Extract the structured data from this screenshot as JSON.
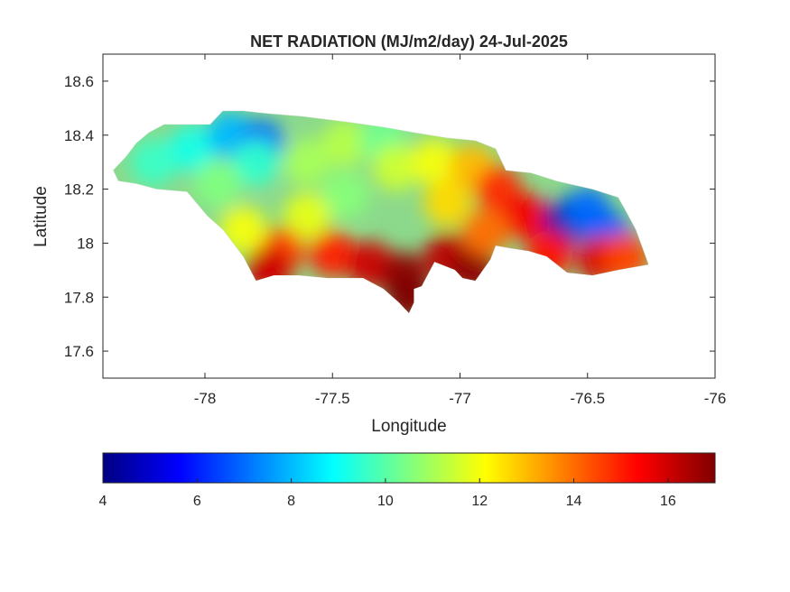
{
  "title": "NET RADIATION (MJ/m2/day) 24-Jul-2025",
  "x_axis": {
    "label": "Longitude",
    "range": [
      -78.4,
      -76
    ],
    "ticks": [
      "-78",
      "-77.5",
      "-77",
      "-76.5",
      "-76"
    ]
  },
  "y_axis": {
    "label": "Latitude",
    "range": [
      17.5,
      18.7
    ],
    "ticks": [
      "17.6",
      "17.8",
      "18",
      "18.2",
      "18.4",
      "18.6"
    ]
  },
  "colorbar": {
    "range": [
      4,
      17
    ],
    "ticks": [
      "4",
      "6",
      "8",
      "10",
      "12",
      "14",
      "16"
    ],
    "colormap": "jet",
    "stops": [
      "#00008f",
      "#0000ff",
      "#00ffff",
      "#ffff00",
      "#ff0000",
      "#800000"
    ],
    "placement": "bottom"
  },
  "map": {
    "region": "Jamaica",
    "outline": [
      [
        -78.36,
        18.27
      ],
      [
        -78.31,
        18.32
      ],
      [
        -78.27,
        18.37
      ],
      [
        -78.22,
        18.41
      ],
      [
        -78.16,
        18.44
      ],
      [
        -78.06,
        18.44
      ],
      [
        -77.98,
        18.44
      ],
      [
        -77.93,
        18.49
      ],
      [
        -77.85,
        18.49
      ],
      [
        -77.75,
        18.48
      ],
      [
        -77.62,
        18.47
      ],
      [
        -77.45,
        18.45
      ],
      [
        -77.3,
        18.43
      ],
      [
        -77.18,
        18.41
      ],
      [
        -77.05,
        18.39
      ],
      [
        -76.94,
        18.38
      ],
      [
        -76.86,
        18.35
      ],
      [
        -76.82,
        18.27
      ],
      [
        -76.72,
        18.26
      ],
      [
        -76.62,
        18.23
      ],
      [
        -76.48,
        18.2
      ],
      [
        -76.38,
        18.17
      ],
      [
        -76.35,
        18.12
      ],
      [
        -76.31,
        18.05
      ],
      [
        -76.26,
        17.92
      ],
      [
        -76.38,
        17.9
      ],
      [
        -76.48,
        17.88
      ],
      [
        -76.58,
        17.89
      ],
      [
        -76.66,
        17.95
      ],
      [
        -76.73,
        17.97
      ],
      [
        -76.8,
        17.98
      ],
      [
        -76.86,
        17.99
      ],
      [
        -76.88,
        17.94
      ],
      [
        -76.94,
        17.86
      ],
      [
        -76.99,
        17.87
      ],
      [
        -77.02,
        17.9
      ],
      [
        -77.1,
        17.93
      ],
      [
        -77.15,
        17.84
      ],
      [
        -77.18,
        17.83
      ],
      [
        -77.18,
        17.78
      ],
      [
        -77.2,
        17.74
      ],
      [
        -77.24,
        17.78
      ],
      [
        -77.3,
        17.83
      ],
      [
        -77.38,
        17.87
      ],
      [
        -77.45,
        17.87
      ],
      [
        -77.52,
        17.87
      ],
      [
        -77.63,
        17.88
      ],
      [
        -77.73,
        17.88
      ],
      [
        -77.8,
        17.86
      ],
      [
        -77.85,
        17.95
      ],
      [
        -77.93,
        18.05
      ],
      [
        -77.99,
        18.1
      ],
      [
        -78.07,
        18.19
      ],
      [
        -78.19,
        18.2
      ],
      [
        -78.27,
        18.22
      ],
      [
        -78.34,
        18.23
      ]
    ],
    "field_samples": [
      {
        "lon": -78.2,
        "lat": 18.3,
        "value": 9.6
      },
      {
        "lon": -78.05,
        "lat": 18.35,
        "value": 9.2
      },
      {
        "lon": -77.9,
        "lat": 18.4,
        "value": 8.0
      },
      {
        "lon": -77.78,
        "lat": 18.37,
        "value": 7.0
      },
      {
        "lon": -77.8,
        "lat": 18.3,
        "value": 9.5
      },
      {
        "lon": -77.95,
        "lat": 18.22,
        "value": 10.5
      },
      {
        "lon": -77.6,
        "lat": 18.3,
        "value": 11.0
      },
      {
        "lon": -77.45,
        "lat": 18.37,
        "value": 11.2
      },
      {
        "lon": -77.3,
        "lat": 18.38,
        "value": 10.3
      },
      {
        "lon": -77.25,
        "lat": 18.28,
        "value": 11.5
      },
      {
        "lon": -77.45,
        "lat": 18.18,
        "value": 10.6
      },
      {
        "lon": -77.6,
        "lat": 18.1,
        "value": 11.8
      },
      {
        "lon": -77.1,
        "lat": 18.3,
        "value": 12.0
      },
      {
        "lon": -77.05,
        "lat": 18.15,
        "value": 12.6
      },
      {
        "lon": -76.95,
        "lat": 18.28,
        "value": 13.0
      },
      {
        "lon": -76.85,
        "lat": 18.2,
        "value": 14.8
      },
      {
        "lon": -76.75,
        "lat": 18.1,
        "value": 15.5
      },
      {
        "lon": -76.58,
        "lat": 18.08,
        "value": 4.5
      },
      {
        "lon": -76.5,
        "lat": 18.12,
        "value": 7.0
      },
      {
        "lon": -76.42,
        "lat": 18.03,
        "value": 6.8
      },
      {
        "lon": -76.65,
        "lat": 17.96,
        "value": 15.2
      },
      {
        "lon": -76.45,
        "lat": 17.94,
        "value": 15.8
      },
      {
        "lon": -76.35,
        "lat": 17.95,
        "value": 14.5
      },
      {
        "lon": -77.7,
        "lat": 17.97,
        "value": 14.5
      },
      {
        "lon": -77.5,
        "lat": 17.96,
        "value": 15.0
      },
      {
        "lon": -77.35,
        "lat": 17.92,
        "value": 16.0
      },
      {
        "lon": -77.22,
        "lat": 17.88,
        "value": 16.8
      },
      {
        "lon": -77.2,
        "lat": 17.8,
        "value": 17.0
      },
      {
        "lon": -77.05,
        "lat": 17.95,
        "value": 16.2
      },
      {
        "lon": -76.95,
        "lat": 17.9,
        "value": 16.8
      },
      {
        "lon": -77.75,
        "lat": 17.9,
        "value": 16.0
      },
      {
        "lon": -77.85,
        "lat": 18.05,
        "value": 12.0
      },
      {
        "lon": -76.9,
        "lat": 18.04,
        "value": 14.0
      }
    ]
  }
}
